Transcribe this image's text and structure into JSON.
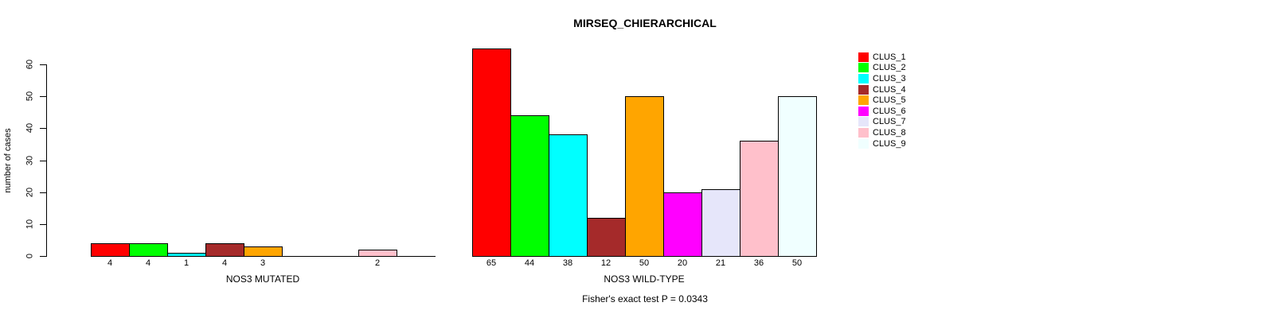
{
  "chart_data": {
    "type": "bar",
    "title": "MIRSEQ_CHIERARCHICAL",
    "ylabel": "number of cases",
    "ylim": [
      0,
      60
    ],
    "yticks": [
      0,
      10,
      20,
      30,
      40,
      50,
      60
    ],
    "grid": false,
    "legend_position": "right",
    "legend": [
      "CLUS_1",
      "CLUS_2",
      "CLUS_3",
      "CLUS_4",
      "CLUS_5",
      "CLUS_6",
      "CLUS_7",
      "CLUS_8",
      "CLUS_9"
    ],
    "colors": [
      "#FF0000",
      "#00FF00",
      "#00FFFF",
      "#A52A2A",
      "#FFA500",
      "#FF00FF",
      "#E6E6FA",
      "#FFC0CB",
      "#F0FFFF"
    ],
    "bar_border_color": "#000000",
    "panels": [
      {
        "xlabel": "NOS3 MUTATED",
        "values": [
          4,
          4,
          1,
          4,
          3,
          0,
          0,
          2,
          0
        ],
        "bar_labels": [
          "4",
          "4",
          "1",
          "4",
          "3",
          "",
          "",
          "2",
          ""
        ]
      },
      {
        "xlabel": "NOS3 WILD-TYPE",
        "values": [
          65,
          44,
          38,
          12,
          50,
          20,
          21,
          36,
          50
        ],
        "bar_labels": [
          "65",
          "44",
          "38",
          "12",
          "50",
          "20",
          "21",
          "36",
          "50"
        ]
      }
    ],
    "footnote": "Fisher's exact test P = 0.0343"
  }
}
